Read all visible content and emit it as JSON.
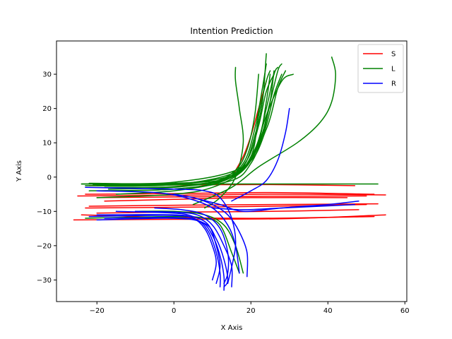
{
  "chart_data": {
    "type": "line",
    "title": "Intention Prediction",
    "xlabel": "X Axis",
    "ylabel": "Y Axis",
    "xlim": [
      -30.5,
      60.5
    ],
    "ylim": [
      -36.3,
      39.7
    ],
    "xticks": [
      -20,
      0,
      20,
      40,
      60
    ],
    "yticks": [
      -30,
      -20,
      -10,
      0,
      10,
      20,
      30
    ],
    "xtick_labels": [
      "−20",
      "0",
      "20",
      "40",
      "60"
    ],
    "ytick_labels": [
      "−30",
      "−20",
      "−10",
      "0",
      "10",
      "20",
      "30"
    ],
    "grid": false,
    "legend": "top-right",
    "series": [
      {
        "name": "S",
        "color": "#ff0000",
        "lines": [
          [
            [
              -26,
              -12.5
            ],
            [
              0,
              -12.3
            ],
            [
              30,
              -12.1
            ],
            [
              55,
              -11
            ]
          ],
          [
            [
              -24,
              -11
            ],
            [
              0,
              -11.8
            ],
            [
              25,
              -12
            ],
            [
              52,
              -11.5
            ]
          ],
          [
            [
              -23,
              -9
            ],
            [
              0,
              -8.8
            ],
            [
              25,
              -8.5
            ],
            [
              50,
              -8
            ]
          ],
          [
            [
              -22,
              -8.5
            ],
            [
              0,
              -8.2
            ],
            [
              25,
              -8
            ],
            [
              53,
              -7.8
            ]
          ],
          [
            [
              -25,
              -5.5
            ],
            [
              0,
              -5.3
            ],
            [
              25,
              -5
            ],
            [
              55,
              -5.2
            ]
          ],
          [
            [
              -23,
              -5
            ],
            [
              0,
              -4.8
            ],
            [
              25,
              -4.5
            ],
            [
              52,
              -5
            ]
          ],
          [
            [
              -20,
              -6
            ],
            [
              0,
              -5.8
            ],
            [
              25,
              -5.6
            ],
            [
              50,
              -5.5
            ]
          ],
          [
            [
              -22,
              -2.5
            ],
            [
              0,
              -2.3
            ],
            [
              25,
              -2.2
            ],
            [
              47,
              -2.5
            ]
          ],
          [
            [
              -20,
              -10.5
            ],
            [
              0,
              -10.2
            ],
            [
              25,
              -10
            ],
            [
              48,
              -9.5
            ]
          ],
          [
            [
              -18,
              -7
            ],
            [
              0,
              -6.5
            ],
            [
              20,
              -6
            ],
            [
              45,
              -6
            ]
          ],
          [
            [
              15,
              0
            ],
            [
              18,
              6
            ],
            [
              20,
              12
            ],
            [
              22,
              20
            ],
            [
              24,
              28
            ]
          ]
        ]
      },
      {
        "name": "L",
        "color": "#008000",
        "lines": [
          [
            [
              -22,
              -2
            ],
            [
              0,
              -2
            ],
            [
              10,
              -1.5
            ],
            [
              16,
              2
            ],
            [
              19,
              8
            ],
            [
              21,
              18
            ],
            [
              22,
              30
            ]
          ],
          [
            [
              -20,
              -2.5
            ],
            [
              0,
              -2.3
            ],
            [
              12,
              -1
            ],
            [
              18,
              4
            ],
            [
              21,
              14
            ],
            [
              23,
              26
            ],
            [
              24,
              33
            ]
          ],
          [
            [
              -18,
              -3
            ],
            [
              0,
              -2.8
            ],
            [
              14,
              -0.5
            ],
            [
              20,
              6
            ],
            [
              22,
              18
            ],
            [
              24,
              28
            ],
            [
              25,
              31
            ]
          ],
          [
            [
              -24,
              -2
            ],
            [
              0,
              -1.8
            ],
            [
              15,
              0
            ],
            [
              21,
              8
            ],
            [
              24,
              20
            ],
            [
              26,
              30
            ],
            [
              27,
              32
            ]
          ],
          [
            [
              -21,
              -2.2
            ],
            [
              0,
              -2
            ],
            [
              16,
              1
            ],
            [
              22,
              10
            ],
            [
              25,
              22
            ],
            [
              27,
              31
            ],
            [
              28,
              33
            ]
          ],
          [
            [
              -19,
              -4
            ],
            [
              0,
              -3.5
            ],
            [
              13,
              -1
            ],
            [
              19,
              5
            ],
            [
              22,
              15
            ],
            [
              24,
              25
            ],
            [
              26,
              30
            ]
          ],
          [
            [
              -23,
              -2.5
            ],
            [
              0,
              -2.2
            ],
            [
              17,
              2
            ],
            [
              23,
              12
            ],
            [
              26,
              24
            ],
            [
              28,
              30
            ]
          ],
          [
            [
              -15,
              -5
            ],
            [
              0,
              -4
            ],
            [
              12,
              -1.5
            ],
            [
              18,
              3
            ],
            [
              21,
              12
            ],
            [
              23,
              22
            ],
            [
              24,
              36
            ]
          ],
          [
            [
              -22,
              -1.8
            ],
            [
              0,
              -1.5
            ],
            [
              18,
              3
            ],
            [
              24,
              14
            ],
            [
              27,
              26
            ],
            [
              29,
              31
            ]
          ],
          [
            [
              -17,
              -3.5
            ],
            [
              0,
              -3
            ],
            [
              14,
              -0.5
            ],
            [
              20,
              5
            ],
            [
              24,
              18
            ],
            [
              28,
              28
            ],
            [
              31,
              30
            ]
          ],
          [
            [
              -24,
              -2
            ],
            [
              0,
              -2
            ],
            [
              20,
              -2
            ],
            [
              53,
              -2
            ]
          ],
          [
            [
              -20,
              -6
            ],
            [
              0,
              -5
            ],
            [
              10,
              -3
            ],
            [
              18,
              2
            ],
            [
              22,
              10
            ],
            [
              24,
              22
            ],
            [
              25,
              30
            ]
          ],
          [
            [
              5,
              -8
            ],
            [
              15,
              -3
            ],
            [
              22,
              3
            ],
            [
              32,
              10
            ],
            [
              38,
              16
            ],
            [
              41,
              22
            ],
            [
              42,
              30
            ],
            [
              41,
              35
            ]
          ],
          [
            [
              8,
              -9
            ],
            [
              12,
              -6
            ],
            [
              16,
              0
            ],
            [
              18,
              10
            ],
            [
              17,
              20
            ],
            [
              16,
              28
            ],
            [
              16,
              32
            ]
          ],
          [
            [
              -10,
              -10
            ],
            [
              0,
              -10
            ],
            [
              8,
              -11
            ],
            [
              13,
              -14
            ],
            [
              16,
              -20
            ],
            [
              18,
              -28
            ]
          ],
          [
            [
              -23,
              -12
            ],
            [
              0,
              -11.5
            ],
            [
              8,
              -12
            ],
            [
              12,
              -14
            ],
            [
              15,
              -22
            ],
            [
              17,
              -28
            ]
          ],
          [
            [
              -22,
              -4
            ],
            [
              0,
              -3.5
            ],
            [
              15,
              -1
            ],
            [
              20,
              4
            ],
            [
              23,
              12
            ],
            [
              25,
              22
            ],
            [
              26,
              31
            ]
          ]
        ]
      },
      {
        "name": "R",
        "color": "#0000ff",
        "lines": [
          [
            [
              -20,
              -11
            ],
            [
              0,
              -11
            ],
            [
              5,
              -12
            ],
            [
              8,
              -15
            ],
            [
              10,
              -20
            ],
            [
              11,
              -25
            ],
            [
              10,
              -30
            ]
          ],
          [
            [
              -22,
              -11.5
            ],
            [
              0,
              -11.2
            ],
            [
              6,
              -12.5
            ],
            [
              9,
              -16
            ],
            [
              11,
              -22
            ],
            [
              12,
              -28
            ],
            [
              12,
              -32
            ]
          ],
          [
            [
              -18,
              -12
            ],
            [
              0,
              -11.8
            ],
            [
              7,
              -13
            ],
            [
              10,
              -17
            ],
            [
              12,
              -23
            ],
            [
              13,
              -29
            ],
            [
              13,
              -33
            ]
          ],
          [
            [
              -15,
              -10
            ],
            [
              0,
              -10.5
            ],
            [
              5,
              -11.5
            ],
            [
              9,
              -14
            ],
            [
              11,
              -20
            ],
            [
              12,
              -26
            ],
            [
              11,
              -31
            ]
          ],
          [
            [
              -20,
              -12.5
            ],
            [
              0,
              -12
            ],
            [
              8,
              -13.5
            ],
            [
              11,
              -18
            ],
            [
              13,
              -24
            ],
            [
              14,
              -30
            ],
            [
              13,
              -32
            ]
          ],
          [
            [
              -10,
              -10
            ],
            [
              0,
              -10.2
            ],
            [
              6,
              -11
            ],
            [
              10,
              -14
            ],
            [
              13,
              -20
            ],
            [
              15,
              -26
            ],
            [
              15,
              -32
            ]
          ],
          [
            [
              -5,
              -9
            ],
            [
              2,
              -9.5
            ],
            [
              8,
              -11
            ],
            [
              12,
              -15
            ],
            [
              14,
              -22
            ],
            [
              14,
              -28
            ],
            [
              13,
              -31
            ]
          ],
          [
            [
              -20,
              -4
            ],
            [
              -5,
              -4.5
            ],
            [
              3,
              -6
            ],
            [
              10,
              -9
            ],
            [
              14,
              -14
            ],
            [
              16,
              -20
            ],
            [
              17,
              -28
            ]
          ],
          [
            [
              0,
              -5
            ],
            [
              5,
              -6
            ],
            [
              10,
              -8
            ],
            [
              14,
              -11
            ],
            [
              17,
              -16
            ],
            [
              19,
              -22
            ],
            [
              19,
              -29
            ]
          ],
          [
            [
              -23,
              -3
            ],
            [
              0,
              -3.5
            ],
            [
              8,
              -4
            ],
            [
              12,
              -6
            ],
            [
              15,
              -12
            ],
            [
              16,
              -20
            ],
            [
              14,
              -31
            ]
          ],
          [
            [
              5,
              -6
            ],
            [
              12,
              -8
            ],
            [
              18,
              -10
            ],
            [
              28,
              -9
            ],
            [
              40,
              -8
            ],
            [
              48,
              -7
            ]
          ],
          [
            [
              10,
              -9
            ],
            [
              18,
              -9.5
            ],
            [
              28,
              -9
            ],
            [
              38,
              -8.5
            ],
            [
              47,
              -8
            ]
          ],
          [
            [
              15,
              -7
            ],
            [
              20,
              -4
            ],
            [
              24,
              -1
            ],
            [
              27,
              5
            ],
            [
              29,
              13
            ],
            [
              30,
              20
            ]
          ]
        ]
      }
    ]
  }
}
